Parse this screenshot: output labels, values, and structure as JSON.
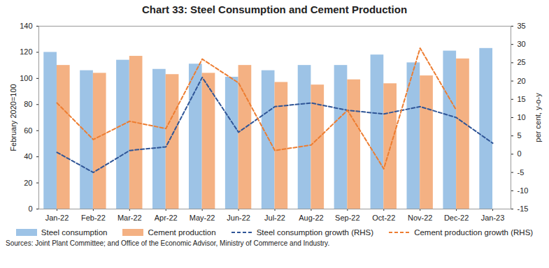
{
  "chart_data": {
    "type": "bar",
    "title": "Chart 33: Steel Consumption and Cement Production",
    "y_label": "February 2020=100",
    "y2_label": "per cent, y-o-y",
    "source": "Sources: Joint Plant Committee; and Office of the Economic Advisor, Ministry of Commerce and Industry.",
    "categories": [
      "Jan-22",
      "Feb-22",
      "Mar-22",
      "Apr-22",
      "May-22",
      "Jun-22",
      "Jul-22",
      "Aug-22",
      "Sep-22",
      "Oct-22",
      "Nov-22",
      "Dec-22",
      "Jan-23"
    ],
    "series": [
      {
        "name": "Steel consumption",
        "type": "bar",
        "color": "#9dc3e6",
        "values": [
          120,
          106,
          114,
          107,
          111,
          101,
          106,
          110,
          110,
          118,
          112,
          121,
          123
        ]
      },
      {
        "name": "Cement production",
        "type": "bar",
        "color": "#f4b183",
        "values": [
          110,
          104,
          117,
          103,
          104,
          110,
          97,
          95,
          99,
          96,
          102,
          115,
          null
        ]
      },
      {
        "name": "Steel consumption growth (RHS)",
        "type": "line",
        "axis": "y2",
        "line_style": "dashed",
        "color": "#2f5597",
        "values": [
          0.5,
          -5,
          1,
          2,
          21,
          6,
          13,
          14,
          12,
          11,
          13,
          10,
          3
        ]
      },
      {
        "name": "Cement production growth (RHS)",
        "type": "line",
        "axis": "y2",
        "line_style": "dashed",
        "color": "#ed7d31",
        "values": [
          14,
          4,
          9,
          7,
          26,
          19.5,
          1,
          2.5,
          12,
          -4,
          29,
          12,
          null
        ]
      }
    ],
    "ylim": [
      0,
      140
    ],
    "yticks": [
      0,
      20,
      40,
      60,
      80,
      100,
      120,
      140
    ],
    "y2lim": [
      -15,
      35
    ],
    "y2ticks": [
      -15,
      -10,
      -5,
      0,
      5,
      10,
      15,
      20,
      25,
      30,
      35
    ],
    "legend": "bottom"
  }
}
